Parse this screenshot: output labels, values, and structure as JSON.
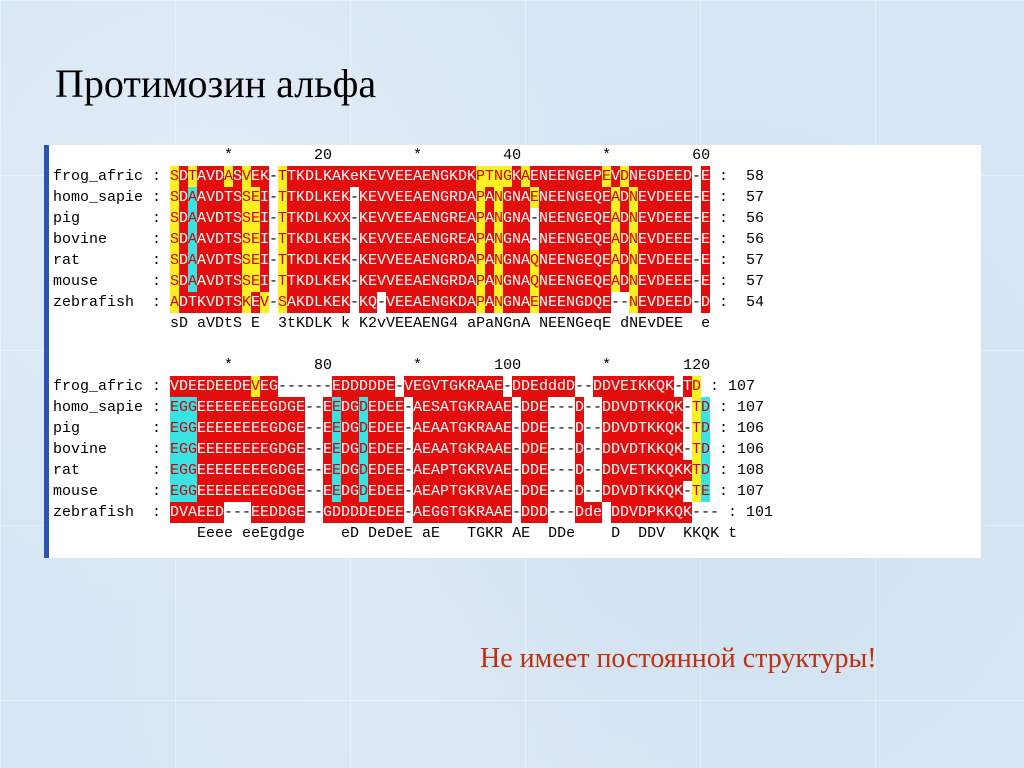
{
  "title": "Протимозин альфа",
  "note": "Не имеет постоянной структуры!",
  "alignment": {
    "blocks": [
      {
        "ruler": "                   *         20         *         40         *         60",
        "rows": [
          {
            "name": "frog_afric",
            "seq": "SDTAVDASVEK-TTKDLKAKeKEVVEEAENGKDKPTNGKAENEENGEPEVDNEGDEED-E",
            "count": "58",
            "colors": "YRYRRRYRYRRRYRRRRRRRRRRRRRRRRRRRRRYYYYRYRRRRRRRRYRYRRRRRRRRRRY"
          },
          {
            "name": "homo_sapie",
            "seq": "SDAAVDTSSEI-TTKDLKEK-KEVVEEAENGRDAPANGNAENEENGEQEADNEVDEEE-E",
            "count": "57",
            "colors": "YRCRRRRRYYRRYRRRRRRRRRRRRRRRRRRRRRYRYRRRYRRRRRRRRYRYRRRRRRRRYC"
          },
          {
            "name": "pig",
            "seq": "SDAAVDTSSEI-TTKDLKXX-KEVVEEAENGREAPANGNA-NEENGEQEADNEVDEEE-E",
            "count": "56",
            "colors": "YRCRRRRRYYRRYRRRRRRRRRRRRRRRRRRRRRYRYRRRYRRRRRRRRYRYRRRRRRRRYC"
          },
          {
            "name": "bovine",
            "seq": "SDAAVDTSSEI-TTKDLKEK-KEVVEEAENGREAPANGNA-NEENGEQEADNEVDEEE-E",
            "count": "56",
            "colors": "YRCRRRRRYYRRYRRRRRRRRRRRRRRRRRRRRRYRYRRRYRRRRRRRRYRYRRRRRRRRYC"
          },
          {
            "name": "rat",
            "seq": "SDAAVDTSSEI-TTKDLKEK-KEVVEEAENGRDAPANGNAQNEENGEQEADNEVDEEE-E",
            "count": "57",
            "colors": "YRCRRRRRYYRRYRRRRRRRRRRRRRRRRRRRRRYRYRRRYRRRRRRRRYRYRRRRRRRRYC"
          },
          {
            "name": "mouse",
            "seq": "SDAAVDTSSEI-TTKDLKEK-KEVVEEAENGRDAPANGNAQNEENGEQEADNEVDEEE-E",
            "count": "57",
            "colors": "YRCRRRRRYYRRYRRRRRRRRRRRRRRRRRRRRRYRYRRRYRRRRRRRRYRYRRRRRRRRYC"
          },
          {
            "name": "zebrafish",
            "seq": "ADTKVDTSKEV-SAKDLKEK-KQ-VEEAENGKDAPANGNAENEENGDQE--NEVDEED-D",
            "count": "54",
            "colors": "YRRRRRRRYRYRYRRRRRRRRRRYRRRRRRRRRRYRYRRRYRRRRRRRRYRYRRRRRRRRRY"
          }
        ],
        "consensus": "sD aVDtS E  3tKDLK k K2vVEEAENG4 aPaNGnA NEENGeqE dNEvDEE  e"
      },
      {
        "ruler": "                   *         80         *        100         *        120",
        "rows": [
          {
            "name": "frog_afric",
            "seq": "VDEEDEEDEVEG------EDDDDDE-VEGVTGKRAAE-DDEdddD--DDVEIKKQK-TD",
            "count": "107",
            "colors": "RRRRRRRRRYRRRRRRRRRRRRRRRRRRRRRRRRRRRRRRRRRRRRRRRRRRRRRRRRYC"
          },
          {
            "name": "homo_sapie",
            "seq": "EGGEEEEEEEEGDGE--EEDGDEDEE-AESATGKRAAE-DDE---D--DDVDTKKQK-TD",
            "count": "107",
            "colors": "CCCRRRRRRRRRRRRRRRCRRCRRRRRRRRRRRRRRRRRRRRRRRRRRRRRRRRRRRRYC"
          },
          {
            "name": "pig",
            "seq": "EGGEEEEEEEEGDGE--EEDGDEDEE-AEAATGKRAAE-DDE---D--DDVDTKKQK-TD",
            "count": "106",
            "colors": "CCCRRRRRRRRRRRRRRRCRRCRRRRRRRRRRRRRRRRRRRRRRRRRRRRRRRRRRRRYC"
          },
          {
            "name": "bovine",
            "seq": "EGGEEEEEEEEGDGE--EEDGDEDEE-AEAATGKRAAE-DDE---D--DDVDTKKQK-TD",
            "count": "106",
            "colors": "CCCRRRRRRRRRRRRRRRCRRCRRRRRRRRRRRRRRRRRRRRRRRRRRRRRRRRRRRRYC"
          },
          {
            "name": "rat",
            "seq": "EGGEEEEEEEEGDGE--EEDGDEDEE-AEAPTGKRVAE-DDE---D--DDVETKKQKKTD",
            "count": "108",
            "colors": "CCCRRRRRRRRRRRRRRRCRRCRRRRRRRRRRRRRRRRRRRRRRRRRRRRRRRRRRRRYC"
          },
          {
            "name": "mouse",
            "seq": "EGGEEEEEEEEGDGE--EEDGDEDEE-AEAPTGKRVAE-DDE---D--DDVDTKKQK-TE",
            "count": "107",
            "colors": "CCCRRRRRRRRRRRRRRRCRRCRRRRRRRRRRRRRRRRRRRRRRRRRRRRRRRRRRRRYC"
          },
          {
            "name": "zebrafish",
            "seq": "DVAEED---EEDDGE--GDDDDEDEE-AEGGTGKRAAE-DDD---Dde DDVDPKKQK---",
            "count": "101",
            "colors": "RRRRRRRRRRRRRRRRRRRRRRRRRRRRRRRRRRRRRRRRRRRRRRRRRRRRRRRRRRRR"
          }
        ],
        "consensus": "   Eeee eeEgdge    eD DeDeE aE   TGKR AE  DDe    D  DDV  KKQK t"
      }
    ]
  }
}
